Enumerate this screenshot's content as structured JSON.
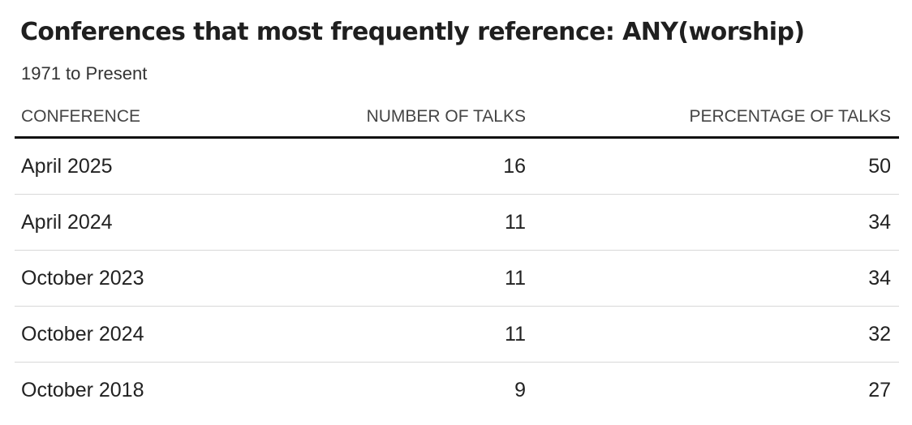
{
  "chart_data": {
    "type": "table",
    "title": "Conferences that most frequently reference: ANY(worship)",
    "subtitle": "1971 to Present",
    "columns": [
      "CONFERENCE",
      "NUMBER OF TALKS",
      "PERCENTAGE OF TALKS"
    ],
    "rows": [
      {
        "conference": "April 2025",
        "talks": "16",
        "percentage": "50"
      },
      {
        "conference": "April 2024",
        "talks": "11",
        "percentage": "34"
      },
      {
        "conference": "October 2023",
        "talks": "11",
        "percentage": "34"
      },
      {
        "conference": "October 2024",
        "talks": "11",
        "percentage": "32"
      },
      {
        "conference": "October 2018",
        "talks": "9",
        "percentage": "27"
      }
    ]
  }
}
